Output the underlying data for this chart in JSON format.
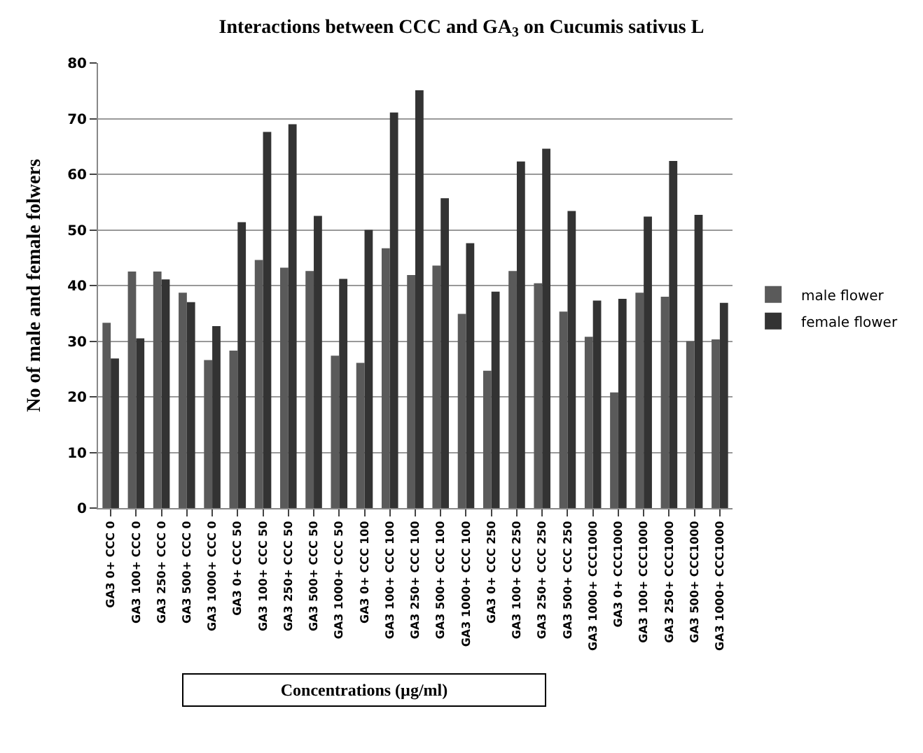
{
  "chart_data": {
    "type": "bar",
    "title": "Interactions between CCC and GA$_{3}$ on Cucumis sativus L",
    "xlabel": "Concentrations (µg/ml)",
    "ylabel": "No of male and female folwers",
    "categories": [
      "GA3 0+ CCC 0",
      "GA3 100+ CCC 0",
      "GA3 250+ CCC 0",
      "GA3 500+ CCC 0",
      "GA3 1000+ CCC 0",
      "GA3 0+ CCC 50",
      "GA3 100+ CCC 50",
      "GA3 250+ CCC 50",
      "GA3 500+ CCC 50",
      "GA3 1000+ CCC 50",
      "GA3 0+ CCC 100",
      "GA3 100+ CCC 100",
      "GA3 250+ CCC 100",
      "GA3 500+ CCC 100",
      "GA3 1000+ CCC 100",
      "GA3 0+ CCC 250",
      "GA3 100+ CCC 250",
      "GA3 250+ CCC 250",
      "GA3 500+ CCC 250",
      "GA3 1000+ CCC1000",
      "GA3 0+ CCC1000",
      "GA3 100+ CCC1000",
      "GA3 250+ CCC1000",
      "GA3 500+ CCC1000",
      "GA3 1000+ CCC1000"
    ],
    "series": [
      {
        "name": "male flower",
        "color": "#5a5a5a",
        "values": [
          33.3,
          42.5,
          42.5,
          38.7,
          26.6,
          28.3,
          44.6,
          43.2,
          42.6,
          27.4,
          26.1,
          46.7,
          41.9,
          43.6,
          34.9,
          24.7,
          42.6,
          40.4,
          35.3,
          30.8,
          20.8,
          38.7,
          38.0,
          30.0,
          30.3
        ]
      },
      {
        "name": "female flower",
        "color": "#333333",
        "values": [
          26.9,
          30.5,
          41.1,
          37.0,
          32.7,
          51.4,
          67.6,
          69.0,
          52.5,
          41.2,
          50.0,
          71.1,
          75.1,
          55.7,
          47.6,
          38.9,
          62.3,
          64.6,
          53.4,
          37.3,
          37.6,
          52.4,
          62.4,
          52.7,
          36.9
        ]
      }
    ],
    "ylim": [
      0,
      80
    ],
    "yticks": [
      0,
      10,
      20,
      30,
      40,
      50,
      60,
      70,
      80
    ],
    "grid": "y",
    "legend": "right"
  }
}
